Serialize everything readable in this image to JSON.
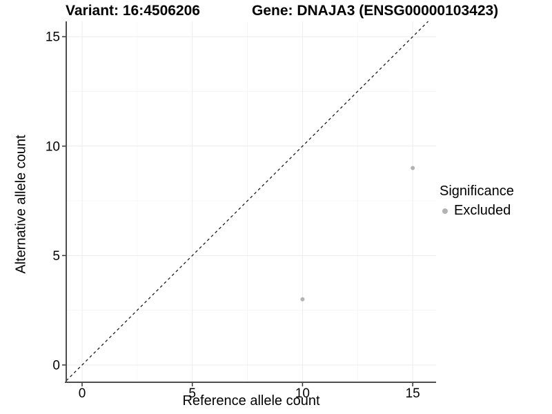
{
  "chart_data": {
    "type": "scatter",
    "title_left": "Variant: 16:4506206",
    "title_right": "Gene: DNAJA3 (ENSG00000103423)",
    "xlabel": "Reference allele count",
    "ylabel": "Alternative allele count",
    "xlim": [
      -0.72,
      16.06
    ],
    "ylim": [
      -0.79,
      15.7
    ],
    "x_ticks": [
      0,
      5,
      10,
      15
    ],
    "y_ticks": [
      0,
      5,
      10,
      15
    ],
    "minor_ticks": [
      2.5,
      7.5,
      12.5
    ],
    "grid": "major and minor, very light gray on white",
    "series": [
      {
        "name": "Excluded",
        "color": "#b3b3b3",
        "points": [
          {
            "x": 10,
            "y": 3
          },
          {
            "x": 15,
            "y": 9
          }
        ]
      }
    ],
    "reference_line": {
      "kind": "identity y=x",
      "style": "dashed",
      "color": "#1a1a1a"
    },
    "legend": {
      "title": "Significance",
      "position": "right",
      "items": [
        {
          "label": "Excluded",
          "color": "#b3b3b3"
        }
      ]
    }
  },
  "colors": {
    "background": "#ffffff",
    "axis_line": "#4d4d4d",
    "tick_mark": "#333333",
    "grid_major": "#ececec",
    "grid_minor": "#f6f6f6",
    "point": "#b3b3b3",
    "text": "#000000"
  }
}
